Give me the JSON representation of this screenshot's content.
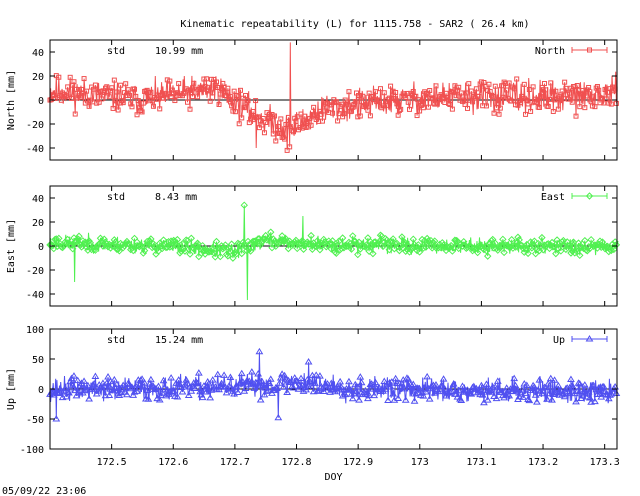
{
  "title": "Kinematic repeatability (L) for 1115.758 - SAR2  ( 26.4 km)",
  "timestamp": "05/09/22 23:06",
  "chart_data": [
    {
      "type": "scatter",
      "name": "north",
      "ylabel": "North [mm]",
      "legend": "North",
      "legend_position": "top-right",
      "std_label": "std",
      "std_value": "10.99 mm",
      "color": "#f05050",
      "marker": "square",
      "xlim": [
        172.4,
        173.32
      ],
      "ylim": [
        -50,
        50
      ],
      "yticks": [
        40,
        20,
        0,
        -20,
        -40
      ],
      "show_xtick_labels": false,
      "seed": 11,
      "noise": 8,
      "disturbances": [
        {
          "x": 172.27,
          "value": 15
        },
        {
          "x": 172.55,
          "value": 0
        },
        {
          "x": 172.67,
          "value": 10
        },
        {
          "x": 172.74,
          "value": -15
        },
        {
          "x": 172.79,
          "value": -25
        },
        {
          "x": 172.84,
          "value": -8
        },
        {
          "x": 172.93,
          "value": -2
        },
        {
          "x": 173.05,
          "value": 3
        },
        {
          "x": 173.22,
          "value": 2
        },
        {
          "x": 173.32,
          "value": 5
        }
      ],
      "spikes": [
        {
          "x": 172.79,
          "value": 48
        },
        {
          "x": 172.785,
          "value": -42
        },
        {
          "x": 172.735,
          "value": -40
        }
      ]
    },
    {
      "type": "scatter",
      "name": "east",
      "ylabel": "East [mm]",
      "legend": "East",
      "legend_position": "top-right",
      "std_label": "std",
      "std_value": "8.43 mm",
      "color": "#50f050",
      "marker": "diamond",
      "xlim": [
        172.4,
        173.32
      ],
      "ylim": [
        -50,
        50
      ],
      "yticks": [
        40,
        20,
        0,
        -20,
        -40
      ],
      "show_xtick_labels": false,
      "seed": 23,
      "noise": 4,
      "disturbances": [
        {
          "x": 172.4,
          "value": 3
        },
        {
          "x": 172.6,
          "value": 0
        },
        {
          "x": 172.7,
          "value": -5
        },
        {
          "x": 172.75,
          "value": 5
        },
        {
          "x": 172.8,
          "value": 2
        },
        {
          "x": 173.0,
          "value": 0
        },
        {
          "x": 173.32,
          "value": 0
        }
      ],
      "spikes": [
        {
          "x": 172.72,
          "value": -45
        },
        {
          "x": 172.715,
          "value": 34
        },
        {
          "x": 172.81,
          "value": 25
        },
        {
          "x": 172.44,
          "value": -30
        }
      ]
    },
    {
      "type": "scatter",
      "name": "up",
      "ylabel": "Up [mm]",
      "legend": "Up",
      "legend_position": "top-right",
      "std_label": "std",
      "std_value": "15.24 mm",
      "color": "#5050f0",
      "marker": "triangle",
      "xlabel": "DOY",
      "xlim": [
        172.4,
        173.32
      ],
      "ylim": [
        -100,
        100
      ],
      "yticks": [
        100,
        50,
        0,
        -50,
        -100
      ],
      "xticks": [
        172.5,
        172.6,
        172.7,
        172.8,
        172.9,
        173,
        173.1,
        173.2,
        173.3
      ],
      "show_xtick_labels": true,
      "seed": 37,
      "noise": 12,
      "disturbances": [
        {
          "x": 172.4,
          "value": 0
        },
        {
          "x": 172.6,
          "value": 0
        },
        {
          "x": 172.72,
          "value": 5
        },
        {
          "x": 172.8,
          "value": 10
        },
        {
          "x": 172.9,
          "value": 0
        },
        {
          "x": 173.32,
          "value": -5
        }
      ],
      "spikes": [
        {
          "x": 172.74,
          "value": 62
        },
        {
          "x": 172.82,
          "value": 45
        },
        {
          "x": 172.77,
          "value": -48
        },
        {
          "x": 172.41,
          "value": -50
        }
      ]
    }
  ]
}
